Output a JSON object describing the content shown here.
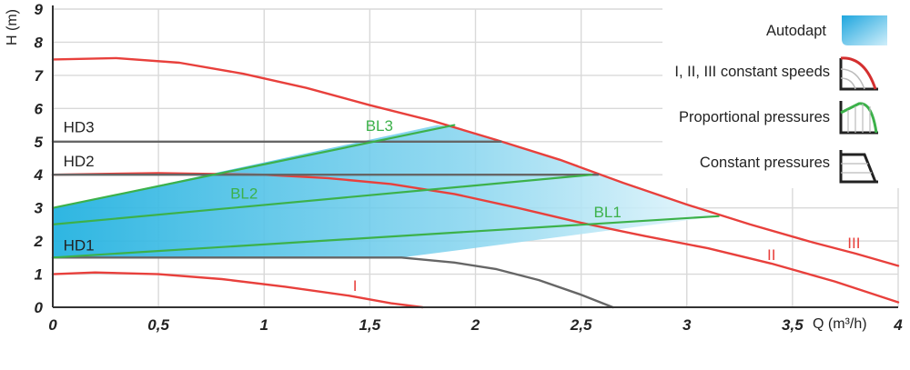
{
  "chart_data": {
    "type": "line",
    "xlabel": "Q (m³/h)",
    "ylabel": "H (m)",
    "xlim": [
      0,
      4
    ],
    "ylim": [
      0,
      9
    ],
    "x_ticks": [
      "0",
      "0,5",
      "1",
      "1,5",
      "2",
      "2,5",
      "3",
      "3,5",
      "4"
    ],
    "y_ticks": [
      "0",
      "1",
      "2",
      "3",
      "4",
      "5",
      "6",
      "7",
      "8",
      "9"
    ],
    "grid": true,
    "series": [
      {
        "name": "I",
        "group": "constant speed",
        "color": "#e8403c",
        "x": [
          0,
          0.2,
          0.5,
          0.8,
          1.1,
          1.4,
          1.6,
          1.75
        ],
        "y": [
          1.0,
          1.05,
          1.0,
          0.85,
          0.62,
          0.35,
          0.12,
          0.0
        ]
      },
      {
        "name": "II",
        "group": "constant speed",
        "color": "#e8403c",
        "x": [
          0,
          0.5,
          1.0,
          1.3,
          1.6,
          1.9,
          2.2,
          2.5,
          2.8,
          3.1,
          3.4,
          3.7,
          4.0
        ],
        "y": [
          4.0,
          4.05,
          4.0,
          3.9,
          3.72,
          3.42,
          3.0,
          2.55,
          2.15,
          1.78,
          1.32,
          0.78,
          0.15
        ]
      },
      {
        "name": "III",
        "group": "constant speed",
        "color": "#e8403c",
        "x": [
          0,
          0.3,
          0.6,
          0.9,
          1.2,
          1.5,
          1.8,
          2.1,
          2.4,
          2.7,
          3.0,
          3.3,
          3.6,
          3.8,
          4.0
        ],
        "y": [
          7.48,
          7.52,
          7.38,
          7.05,
          6.62,
          6.1,
          5.62,
          5.05,
          4.45,
          3.75,
          3.1,
          2.5,
          1.95,
          1.62,
          1.25
        ]
      },
      {
        "name": "HD1",
        "group": "constant pressure",
        "color": "#666666",
        "x": [
          0,
          1.65,
          1.9,
          2.1,
          2.3,
          2.5,
          2.65
        ],
        "y": [
          1.5,
          1.5,
          1.35,
          1.15,
          0.82,
          0.38,
          0.0
        ]
      },
      {
        "name": "HD2",
        "group": "constant pressure",
        "color": "#666666",
        "x": [
          0,
          2.58
        ],
        "y": [
          4.0,
          4.0
        ]
      },
      {
        "name": "HD3",
        "group": "constant pressure",
        "color": "#666666",
        "x": [
          0,
          2.12
        ],
        "y": [
          5.0,
          5.0
        ]
      },
      {
        "name": "BL1",
        "group": "proportional pressure",
        "color": "#3cb14a",
        "x": [
          0,
          3.15
        ],
        "y": [
          1.5,
          2.75
        ]
      },
      {
        "name": "BL2",
        "group": "proportional pressure",
        "color": "#3cb14a",
        "x": [
          0,
          2.55
        ],
        "y": [
          2.5,
          4.0
        ]
      },
      {
        "name": "BL3",
        "group": "proportional pressure",
        "color": "#3cb14a",
        "x": [
          0,
          1.9
        ],
        "y": [
          3.0,
          5.5
        ]
      }
    ],
    "autoadapt_region": {
      "x": [
        0,
        1.82,
        1.9,
        2.1,
        2.4,
        2.7,
        3.0,
        3.15,
        1.65,
        0
      ],
      "y": [
        3.0,
        5.5,
        5.45,
        5.05,
        4.45,
        3.75,
        3.1,
        2.75,
        1.5,
        1.5
      ]
    },
    "curve_labels": [
      {
        "text": "HD3",
        "x": 0.05,
        "y": 5.28,
        "color": "#222222"
      },
      {
        "text": "HD2",
        "x": 0.05,
        "y": 4.25,
        "color": "#222222"
      },
      {
        "text": "HD1",
        "x": 0.05,
        "y": 1.72,
        "color": "#222222"
      },
      {
        "text": "BL3",
        "x": 1.48,
        "y": 5.32,
        "color": "#3cb14a"
      },
      {
        "text": "BL2",
        "x": 0.84,
        "y": 3.28,
        "color": "#3cb14a"
      },
      {
        "text": "BL1",
        "x": 2.56,
        "y": 2.72,
        "color": "#3cb14a"
      },
      {
        "text": "I",
        "x": 1.42,
        "y": 0.5,
        "color": "#e8403c"
      },
      {
        "text": "II",
        "x": 3.38,
        "y": 1.42,
        "color": "#e8403c"
      },
      {
        "text": "III",
        "x": 3.76,
        "y": 1.78,
        "color": "#e8403c"
      }
    ],
    "legend": {
      "position": "top-right",
      "items": [
        {
          "label": "Autodapt",
          "icon": "autoadapt-swatch"
        },
        {
          "label": "I, II, III constant speeds",
          "icon": "constant-speed-icon"
        },
        {
          "label": "Proportional pressures",
          "icon": "proportional-pressure-icon"
        },
        {
          "label": "Constant pressures",
          "icon": "constant-pressure-icon"
        }
      ]
    },
    "colors": {
      "constant_speed": "#e8403c",
      "constant_pressure": "#666666",
      "proportional_pressure": "#3cb14a",
      "autoadapt_fill": "#21b1de"
    }
  }
}
